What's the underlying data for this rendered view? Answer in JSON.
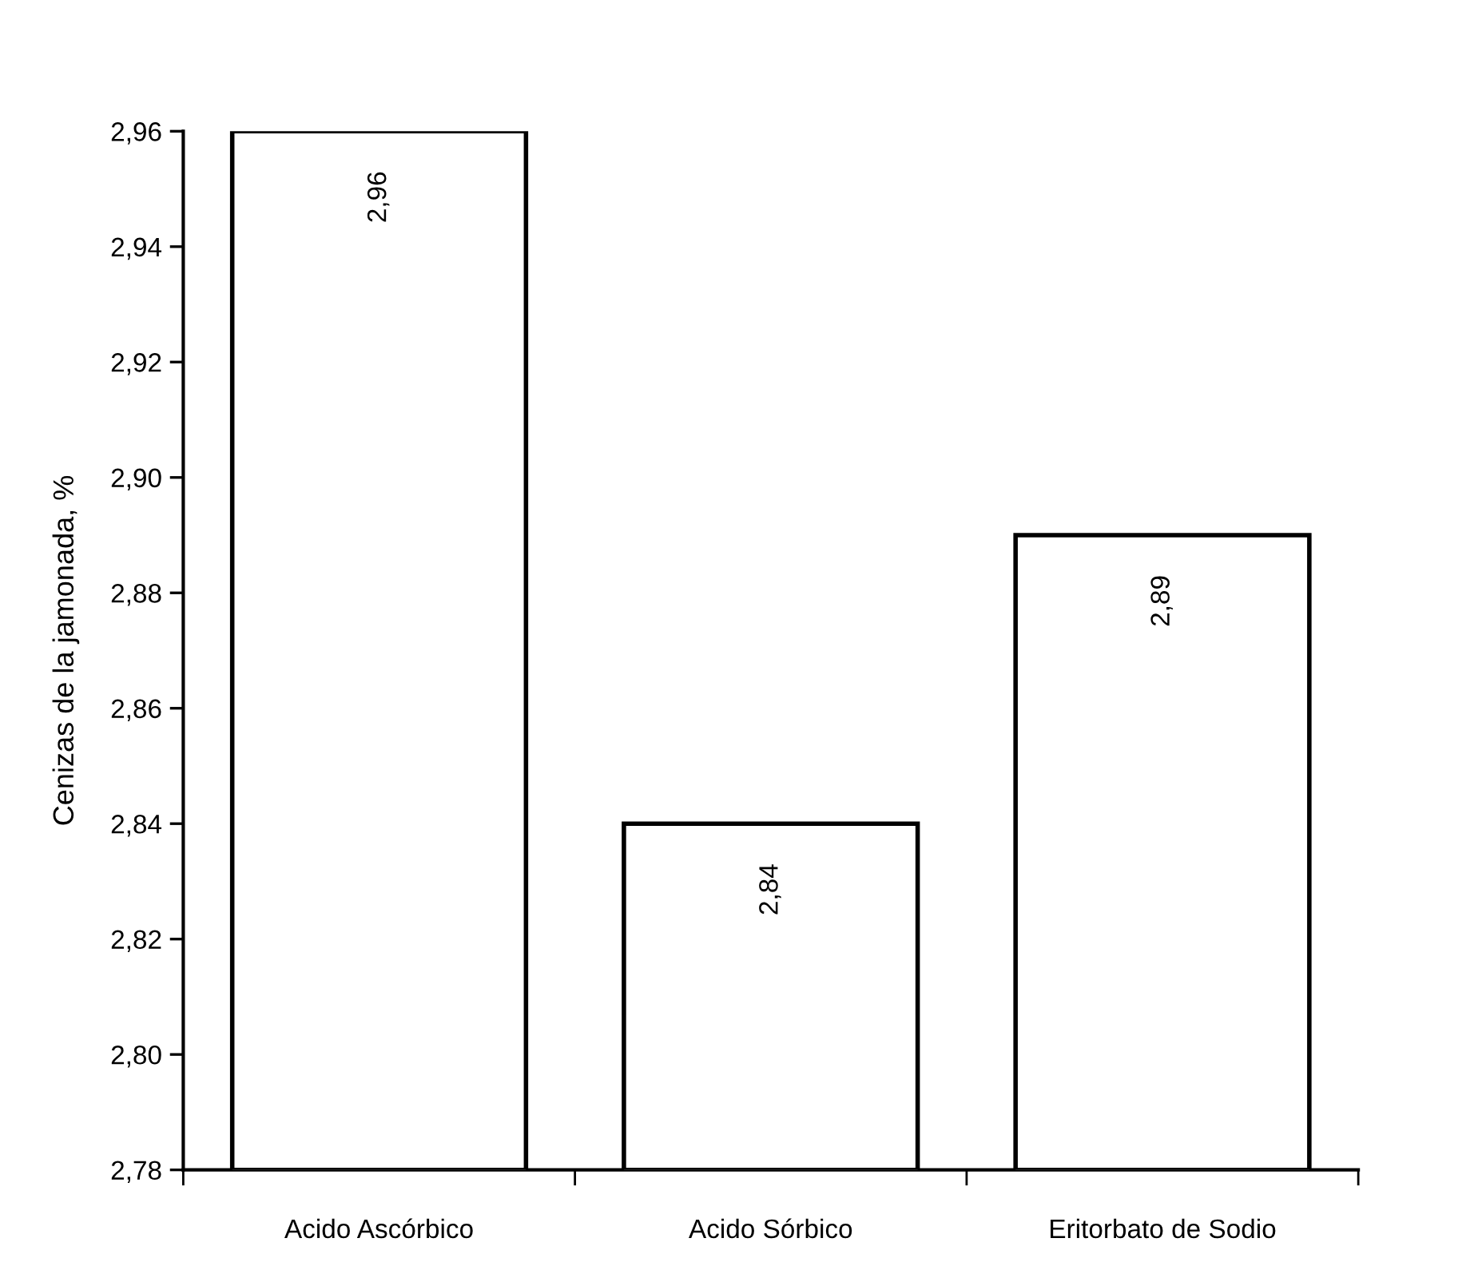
{
  "chart_data": {
    "type": "bar",
    "ylabel": "Cenizas de la jamonada, %",
    "categories": [
      "Acido Ascórbico",
      "Acido Sórbico",
      "Eritorbato de Sodio"
    ],
    "values": [
      2.96,
      2.84,
      2.89
    ],
    "value_labels": [
      "2,96",
      "2,84",
      "2,89"
    ],
    "color": "#ffffff",
    "ylim": [
      2.78,
      2.96
    ],
    "yticks": [
      {
        "value": 2.78,
        "label": "2,78"
      },
      {
        "value": 2.8,
        "label": "2,80"
      },
      {
        "value": 2.82,
        "label": "2,82"
      },
      {
        "value": 2.84,
        "label": "2,84"
      },
      {
        "value": 2.86,
        "label": "2,86"
      },
      {
        "value": 2.88,
        "label": "2,88"
      },
      {
        "value": 2.9,
        "label": "2,90"
      },
      {
        "value": 2.92,
        "label": "2,92"
      },
      {
        "value": 2.94,
        "label": "2,94"
      },
      {
        "value": 2.96,
        "label": "2,96"
      }
    ]
  }
}
